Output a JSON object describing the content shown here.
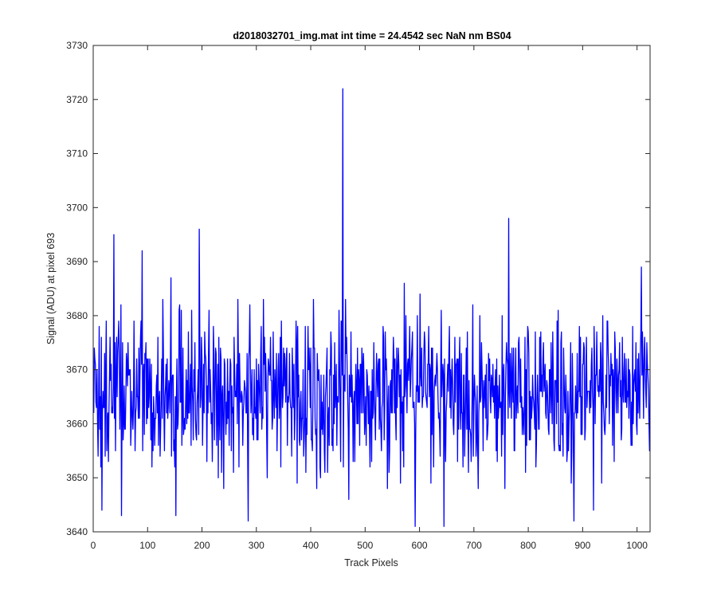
{
  "chart_data": {
    "type": "line",
    "title": "d2018032701_img.mat int time = 24.4542 sec  NaN nm BS04",
    "xlabel": "Track Pixels",
    "ylabel": "Signal (ADU) at pixel 693",
    "xlim": [
      0,
      1024
    ],
    "ylim": [
      3640,
      3730
    ],
    "xticks": [
      "0",
      "100",
      "200",
      "300",
      "400",
      "500",
      "600",
      "700",
      "800",
      "900",
      "1000"
    ],
    "yticks": [
      "3640",
      "3650",
      "3660",
      "3670",
      "3680",
      "3690",
      "3700",
      "3710",
      "3720",
      "3730"
    ],
    "grid": false,
    "legend": "none",
    "line_color": "#0000ff",
    "series": [
      {
        "x_start": 1,
        "x_step": 1,
        "points": 1024,
        "baseline": 3666,
        "spread": 7,
        "min": 3641,
        "max": 3722,
        "spikes": [
          {
            "x": 16,
            "y": 3644
          },
          {
            "x": 38,
            "y": 3695
          },
          {
            "x": 52,
            "y": 3643
          },
          {
            "x": 90,
            "y": 3692
          },
          {
            "x": 152,
            "y": 3643
          },
          {
            "x": 195,
            "y": 3696
          },
          {
            "x": 285,
            "y": 3642
          },
          {
            "x": 459,
            "y": 3722
          },
          {
            "x": 470,
            "y": 3646
          },
          {
            "x": 592,
            "y": 3641
          },
          {
            "x": 645,
            "y": 3641
          },
          {
            "x": 764,
            "y": 3698
          },
          {
            "x": 884,
            "y": 3642
          },
          {
            "x": 920,
            "y": 3644
          },
          {
            "x": 1008,
            "y": 3689
          }
        ]
      }
    ]
  }
}
